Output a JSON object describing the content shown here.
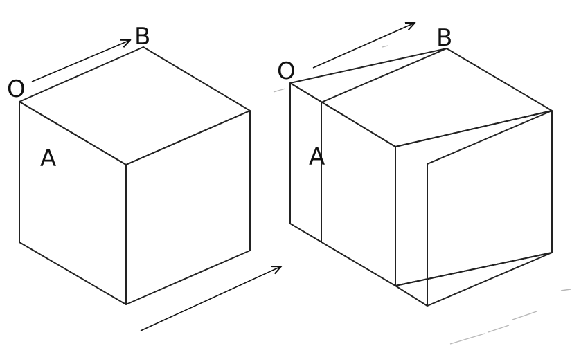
{
  "figure": {
    "left_cube": {
      "labels": {
        "o": "O",
        "b": "B",
        "a": "A"
      },
      "colors": {
        "top": "#8b0b0b",
        "left": "#0b3a96",
        "right": "#b5b40c"
      }
    },
    "right_cube": {
      "labels": {
        "o": "O",
        "b": "B",
        "a": "A"
      },
      "colors": {
        "top": "#8b0b0b",
        "left": "#0b3a96",
        "right": "#d4d40c",
        "hidden": "#ffffff"
      }
    },
    "arrow_directions": [
      "top-left-cube",
      "top-right-cube",
      "bottom-center"
    ]
  }
}
